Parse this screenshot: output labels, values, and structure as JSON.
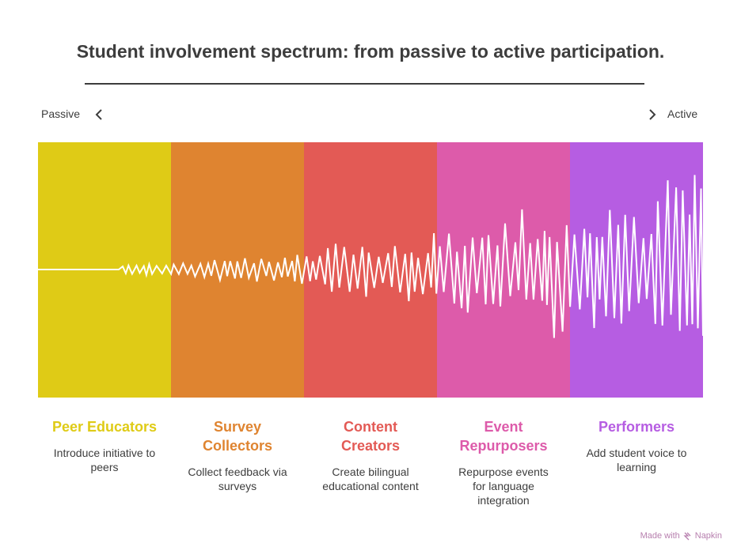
{
  "title": "Student involvement spectrum: from passive to active participation.",
  "axis": {
    "left_label": "Passive",
    "right_label": "Active"
  },
  "stages": [
    {
      "name": "Peer Educators",
      "description": "Introduce initiative to peers",
      "color": "#DFCB16",
      "text_color": "#DFCB16"
    },
    {
      "name": "Survey Collectors",
      "description": "Collect feedback via surveys",
      "color": "#DF8430",
      "text_color": "#DF8430"
    },
    {
      "name": "Content Creators",
      "description": "Create bilingual educational content",
      "color": "#E35A55",
      "text_color": "#E35A55"
    },
    {
      "name": "Event Repurposers",
      "description": "Repurpose events for language integration",
      "color": "#DD5BAA",
      "text_color": "#DD5BAA"
    },
    {
      "name": "Performers",
      "description": "Add student voice to learning",
      "color": "#B65DE2",
      "text_color": "#B65DE2"
    }
  ],
  "footer": {
    "made_with": "Made with",
    "brand": "Napkin"
  }
}
